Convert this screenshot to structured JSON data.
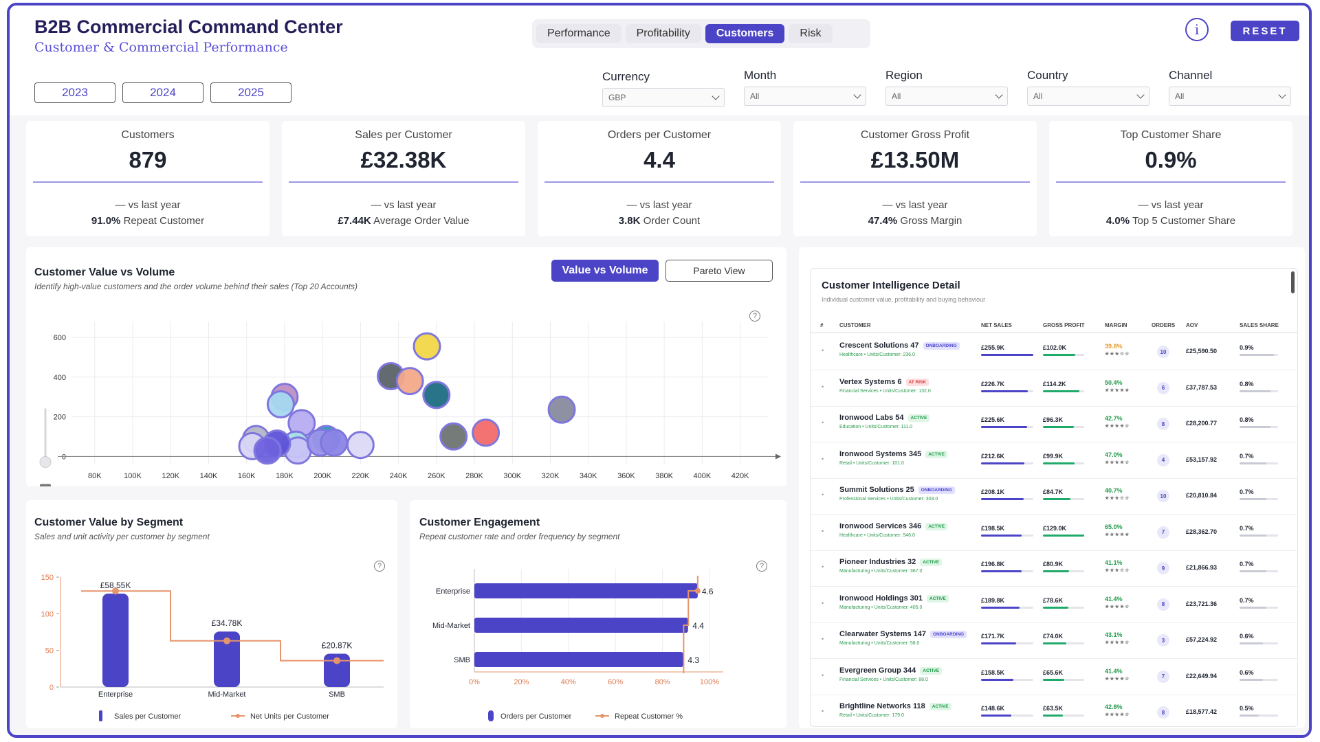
{
  "header": {
    "title": "B2B Commercial Command Center",
    "subtitle": "Customer & Commercial Performance",
    "tabs": [
      {
        "label": "Performance",
        "active": false
      },
      {
        "label": "Profitability",
        "active": false
      },
      {
        "label": "Customers",
        "active": true
      },
      {
        "label": "Risk",
        "active": false
      }
    ],
    "info_icon": "info-icon",
    "info_glyph": "i",
    "reset_label": "RESET",
    "accent_color": "#4b44c6"
  },
  "years": [
    "2023",
    "2024",
    "2025"
  ],
  "filters": [
    {
      "label": "Currency",
      "value": "GBP"
    },
    {
      "label": "Month",
      "value": "All"
    },
    {
      "label": "Region",
      "value": "All"
    },
    {
      "label": "Country",
      "value": "All"
    },
    {
      "label": "Channel",
      "value": "All"
    }
  ],
  "kpis": [
    {
      "label": "Customers",
      "value": "879",
      "delta": "— vs last year",
      "sub_value": "91.0%",
      "sub_label": "Repeat Customer"
    },
    {
      "label": "Sales per Customer",
      "value": "£32.38K",
      "delta": "— vs last year",
      "sub_value": "£7.44K",
      "sub_label": "Average Order Value"
    },
    {
      "label": "Orders per Customer",
      "value": "4.4",
      "delta": "— vs last year",
      "sub_value": "3.8K",
      "sub_label": "Order Count"
    },
    {
      "label": "Customer Gross Profit",
      "value": "£13.50M",
      "delta": "— vs last year",
      "sub_value": "47.4%",
      "sub_label": "Gross Margin"
    },
    {
      "label": "Top Customer Share",
      "value": "0.9%",
      "delta": "— vs last year",
      "sub_value": "4.0%",
      "sub_label": "Top 5 Customer Share"
    }
  ],
  "value_volume": {
    "title": "Customer Value vs Volume",
    "subtitle": "Identify high-value customers and the order volume behind their sales (Top 20 Accounts)",
    "toggle_active": "Value vs Volume",
    "toggle_inactive": "Pareto View",
    "help_glyph": "?"
  },
  "segment": {
    "title": "Customer Value by Segment",
    "subtitle": "Sales and unit activity per customer by segment",
    "legend": [
      "Sales per Customer",
      "Net Units per Customer"
    ],
    "help_glyph": "?"
  },
  "engagement": {
    "title": "Customer Engagement",
    "subtitle": "Repeat customer rate and order frequency by segment",
    "legend": [
      "Orders per Customer",
      "Repeat Customer %"
    ],
    "help_glyph": "?"
  },
  "chart_data": [
    {
      "type": "scatter",
      "title": "Customer Value vs Volume",
      "x_ticks": [
        "80K",
        "100K",
        "120K",
        "140K",
        "160K",
        "180K",
        "200K",
        "220K",
        "240K",
        "260K",
        "280K",
        "300K",
        "320K",
        "340K",
        "360K",
        "380K",
        "400K",
        "420K"
      ],
      "y_ticks": [
        "0",
        "200",
        "400",
        "600"
      ],
      "xlim": [
        75000,
        435000
      ],
      "ylim": [
        -40,
        680
      ],
      "points": [
        {
          "x": 326000,
          "y": 236,
          "color": "#888a9e"
        },
        {
          "x": 255000,
          "y": 555,
          "color": "#f2d649"
        },
        {
          "x": 236000,
          "y": 405,
          "color": "#5b6268"
        },
        {
          "x": 246000,
          "y": 380,
          "color": "#f3a989"
        },
        {
          "x": 260000,
          "y": 310,
          "color": "#1f6d83"
        },
        {
          "x": 269000,
          "y": 101,
          "color": "#6e7472"
        },
        {
          "x": 286000,
          "y": 120,
          "color": "#f26a6a"
        },
        {
          "x": 180000,
          "y": 300,
          "color": "#c08fc3"
        },
        {
          "x": 178000,
          "y": 263,
          "color": "#a7d8f0"
        },
        {
          "x": 189000,
          "y": 168,
          "color": "#b7acf0"
        },
        {
          "x": 165000,
          "y": 88,
          "color": "#b4b6c8"
        },
        {
          "x": 186000,
          "y": 60,
          "color": "#a7e0e7"
        },
        {
          "x": 187000,
          "y": 30,
          "color": "#c8c3f5"
        },
        {
          "x": 176000,
          "y": 65,
          "color": "#5d52d8"
        },
        {
          "x": 163000,
          "y": 52,
          "color": "#d8d5f5"
        },
        {
          "x": 171000,
          "y": 30,
          "color": "#6f62de"
        },
        {
          "x": 202000,
          "y": 88,
          "color": "#2898b8"
        },
        {
          "x": 220000,
          "y": 58,
          "color": "#dcd9f7"
        },
        {
          "x": 199000,
          "y": 70,
          "color": "#9b94e9"
        },
        {
          "x": 206000,
          "y": 70,
          "color": "#8b84e6"
        }
      ]
    },
    {
      "type": "bar",
      "title": "Customer Value by Segment",
      "categories": [
        "Enterprise",
        "Mid-Market",
        "SMB"
      ],
      "series": [
        {
          "name": "Sales per Customer",
          "values": [
            58.55,
            34.78,
            20.87
          ],
          "labels": [
            "£58.55K",
            "£34.78K",
            "£20.87K"
          ],
          "color": "#4b44c6"
        },
        {
          "name": "Net Units per Customer",
          "values": [
            131,
            63,
            36
          ],
          "color": "#e6946b"
        }
      ],
      "y_ticks": [
        "0",
        "50",
        "100",
        "150"
      ],
      "ylim": [
        0,
        150
      ]
    },
    {
      "type": "bar",
      "title": "Customer Engagement",
      "orientation": "horizontal",
      "categories": [
        "Enterprise",
        "Mid-Market",
        "SMB"
      ],
      "series": [
        {
          "name": "Orders per Customer",
          "values": [
            4.6,
            4.4,
            4.3
          ],
          "labels": [
            "4.6",
            "4.4",
            "4.3"
          ],
          "color": "#4b44c6"
        },
        {
          "name": "Repeat Customer %",
          "values": [
            95,
            91,
            89
          ],
          "color": "#e6946b"
        }
      ],
      "x_ticks": [
        "0%",
        "20%",
        "40%",
        "60%",
        "80%",
        "100%"
      ],
      "xlim": [
        0,
        100
      ]
    }
  ],
  "table": {
    "title": "Customer Intelligence Detail",
    "subtitle": "Individual customer value, profitability and buying behaviour",
    "columns": [
      "#",
      "CUSTOMER",
      "NET SALES",
      "GROSS PROFIT",
      "MARGIN",
      "ORDERS",
      "AOV",
      "SALES SHARE"
    ],
    "bullet": "•",
    "rows": [
      {
        "name": "Crescent Solutions 47",
        "status": "ONBOARDING",
        "meta": "Healthcare • Units/Customer: 236.0",
        "sales": "£255.9K",
        "sales_pct": 1.0,
        "profit": "£102.0K",
        "profit_pct": 0.79,
        "margin": "39.8%",
        "margin_color": "#e59a2b",
        "stars": "★★★☆☆",
        "orders": "10",
        "aov": "£25,590.50",
        "share": "0.9%",
        "share_pct": 0.9
      },
      {
        "name": "Vertex Systems 6",
        "status": "AT RISK",
        "meta": "Financial Services • Units/Customer: 132.0",
        "sales": "£226.7K",
        "sales_pct": 0.89,
        "profit": "£114.2K",
        "profit_pct": 0.88,
        "margin": "50.4%",
        "margin_color": "#1f9a4a",
        "stars": "★★★★★",
        "orders": "6",
        "aov": "£37,787.53",
        "share": "0.8%",
        "share_pct": 0.8
      },
      {
        "name": "Ironwood Labs 54",
        "status": "ACTIVE",
        "meta": "Education • Units/Customer: 111.0",
        "sales": "£225.6K",
        "sales_pct": 0.88,
        "profit": "£96.3K",
        "profit_pct": 0.75,
        "margin": "42.7%",
        "margin_color": "#1f9a4a",
        "stars": "★★★★☆",
        "orders": "8",
        "aov": "£28,200.77",
        "share": "0.8%",
        "share_pct": 0.8
      },
      {
        "name": "Ironwood Systems 345",
        "status": "ACTIVE",
        "meta": "Retail • Units/Customer: 101.0",
        "sales": "£212.6K",
        "sales_pct": 0.83,
        "profit": "£99.9K",
        "profit_pct": 0.77,
        "margin": "47.0%",
        "margin_color": "#1f9a4a",
        "stars": "★★★★☆",
        "orders": "4",
        "aov": "£53,157.92",
        "share": "0.7%",
        "share_pct": 0.7
      },
      {
        "name": "Summit Solutions 25",
        "status": "ONBOARDING",
        "meta": "Professional Services • Units/Customer: 303.0",
        "sales": "£208.1K",
        "sales_pct": 0.81,
        "profit": "£84.7K",
        "profit_pct": 0.66,
        "margin": "40.7%",
        "margin_color": "#1f9a4a",
        "stars": "★★★☆☆",
        "orders": "10",
        "aov": "£20,810.84",
        "share": "0.7%",
        "share_pct": 0.7
      },
      {
        "name": "Ironwood Services 346",
        "status": "ACTIVE",
        "meta": "Healthcare • Units/Customer: 546.0",
        "sales": "£198.5K",
        "sales_pct": 0.78,
        "profit": "£129.0K",
        "profit_pct": 1.0,
        "margin": "65.0%",
        "margin_color": "#1f9a4a",
        "stars": "★★★★★",
        "orders": "7",
        "aov": "£28,362.70",
        "share": "0.7%",
        "share_pct": 0.7
      },
      {
        "name": "Pioneer Industries 32",
        "status": "ACTIVE",
        "meta": "Manufacturing • Units/Customer: 367.0",
        "sales": "£196.8K",
        "sales_pct": 0.77,
        "profit": "£80.9K",
        "profit_pct": 0.63,
        "margin": "41.1%",
        "margin_color": "#1f9a4a",
        "stars": "★★★☆☆",
        "orders": "9",
        "aov": "£21,866.93",
        "share": "0.7%",
        "share_pct": 0.7
      },
      {
        "name": "Ironwood Holdings 301",
        "status": "ACTIVE",
        "meta": "Manufacturing • Units/Customer: 405.0",
        "sales": "£189.8K",
        "sales_pct": 0.74,
        "profit": "£78.6K",
        "profit_pct": 0.61,
        "margin": "41.4%",
        "margin_color": "#1f9a4a",
        "stars": "★★★★☆",
        "orders": "8",
        "aov": "£23,721.36",
        "share": "0.7%",
        "share_pct": 0.7
      },
      {
        "name": "Clearwater Systems 147",
        "status": "ONBOARDING",
        "meta": "Manufacturing • Units/Customer: 58.0",
        "sales": "£171.7K",
        "sales_pct": 0.67,
        "profit": "£74.0K",
        "profit_pct": 0.57,
        "margin": "43.1%",
        "margin_color": "#1f9a4a",
        "stars": "★★★★☆",
        "orders": "3",
        "aov": "£57,224.92",
        "share": "0.6%",
        "share_pct": 0.6
      },
      {
        "name": "Evergreen Group 344",
        "status": "ACTIVE",
        "meta": "Financial Services • Units/Customer: 88.0",
        "sales": "£158.5K",
        "sales_pct": 0.62,
        "profit": "£65.6K",
        "profit_pct": 0.51,
        "margin": "41.4%",
        "margin_color": "#1f9a4a",
        "stars": "★★★★☆",
        "orders": "7",
        "aov": "£22,649.94",
        "share": "0.6%",
        "share_pct": 0.6
      },
      {
        "name": "Brightline Networks 118",
        "status": "ACTIVE",
        "meta": "Retail • Units/Customer: 179.0",
        "sales": "£148.6K",
        "sales_pct": 0.58,
        "profit": "£63.5K",
        "profit_pct": 0.49,
        "margin": "42.8%",
        "margin_color": "#1f9a4a",
        "stars": "★★★★☆",
        "orders": "8",
        "aov": "£18,577.42",
        "share": "0.5%",
        "share_pct": 0.5
      }
    ]
  }
}
